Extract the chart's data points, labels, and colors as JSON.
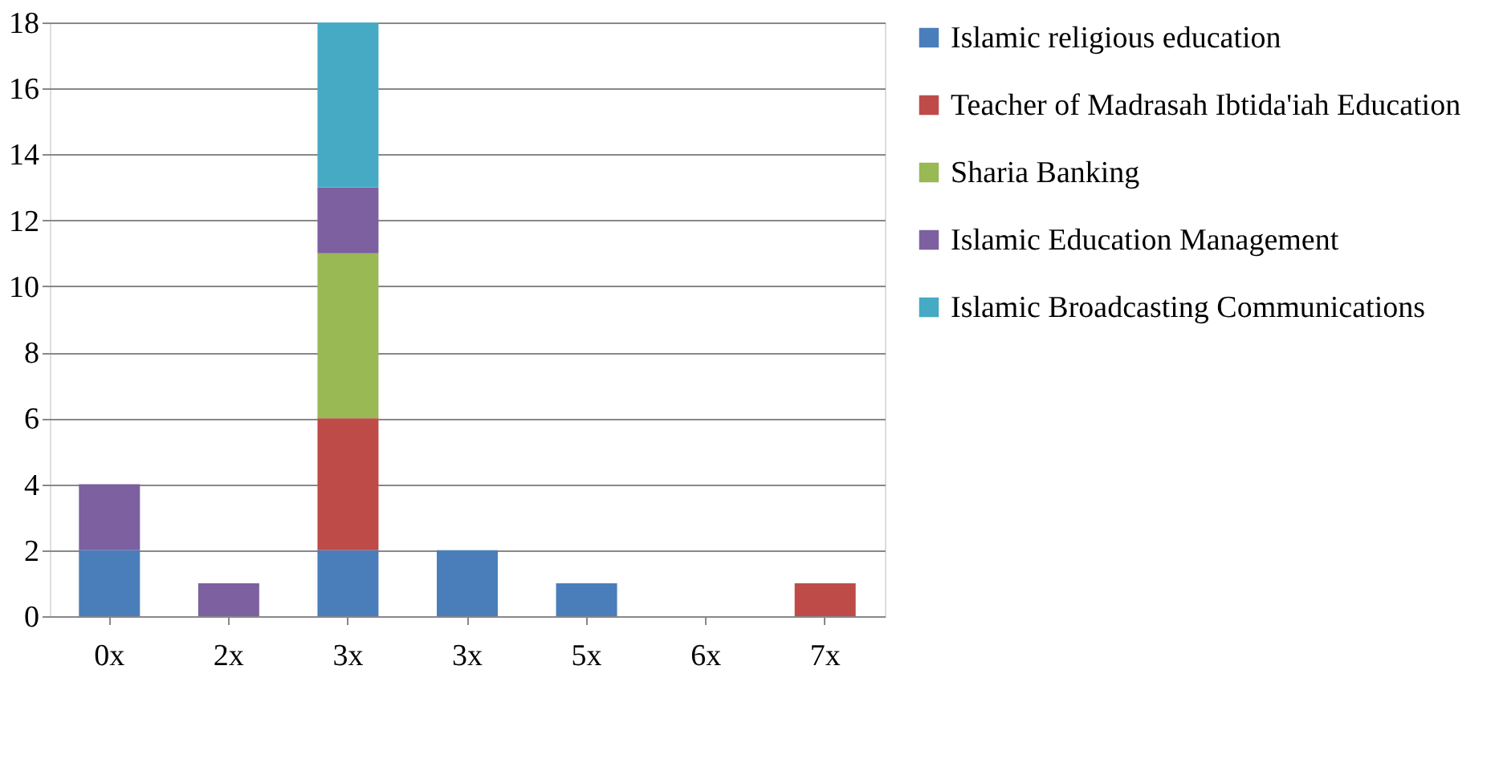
{
  "chart_data": {
    "type": "bar",
    "stacked": true,
    "categories": [
      "0x",
      "2x",
      "3x",
      "3x",
      "5x",
      "6x",
      "7x"
    ],
    "series": [
      {
        "name": "Islamic religious education",
        "color": "#4a7ebb",
        "values": [
          2,
          0,
          2,
          2,
          1,
          0,
          0
        ]
      },
      {
        "name": "Teacher of Madrasah Ibtida'iah Education",
        "color": "#be4b48",
        "values": [
          0,
          0,
          4,
          0,
          0,
          0,
          1
        ]
      },
      {
        "name": "Sharia Banking",
        "color": "#98b954",
        "values": [
          0,
          0,
          5,
          0,
          0,
          0,
          0
        ]
      },
      {
        "name": "Islamic Education Management",
        "color": "#7d60a0",
        "values": [
          2,
          1,
          2,
          0,
          0,
          0,
          0
        ]
      },
      {
        "name": "Islamic Broadcasting Communications",
        "color": "#46aac5",
        "values": [
          0,
          0,
          5,
          0,
          0,
          0,
          0
        ]
      }
    ],
    "ylim": [
      0,
      18
    ],
    "yticks": [
      0,
      2,
      4,
      6,
      8,
      10,
      12,
      14,
      16,
      18
    ],
    "grid": "y",
    "legend": "right"
  }
}
